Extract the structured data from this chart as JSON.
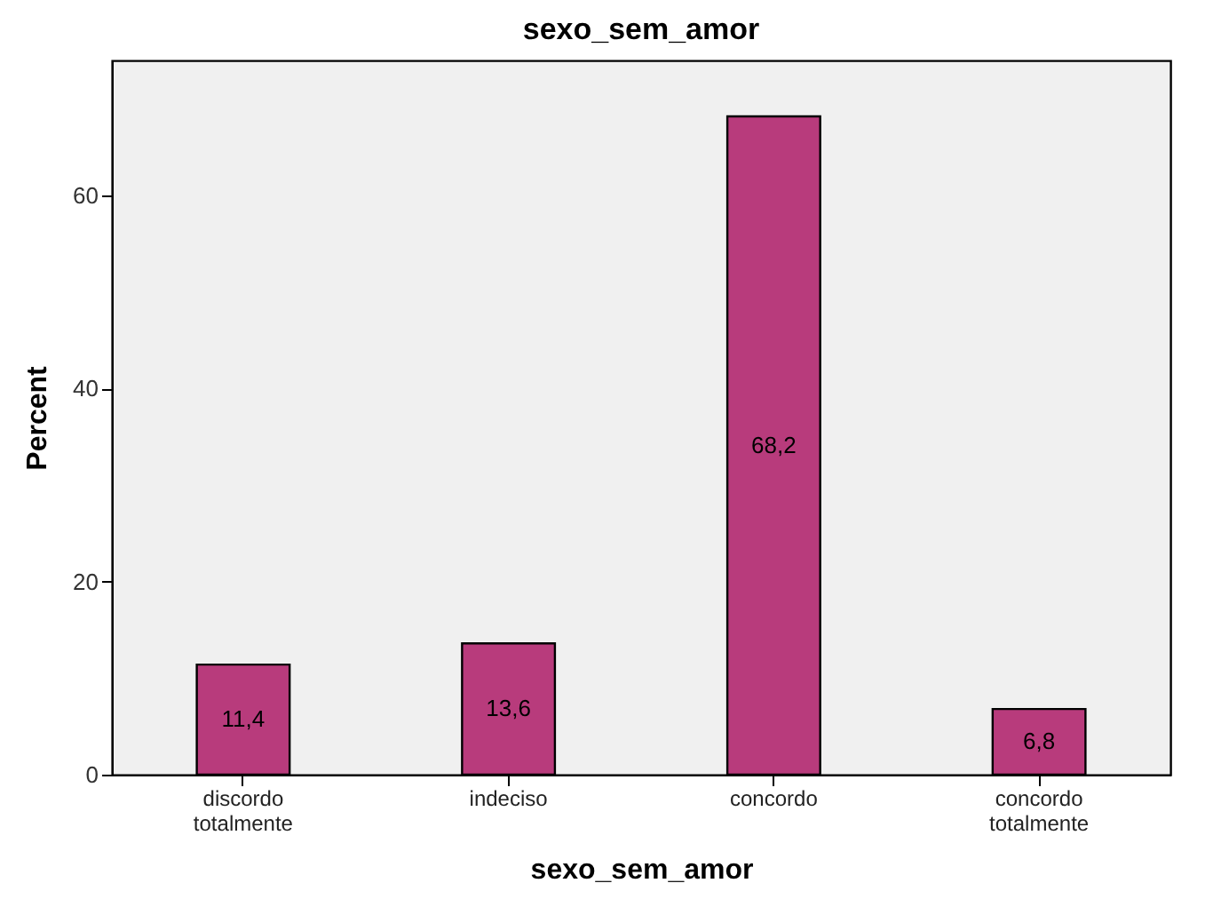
{
  "chart_data": {
    "type": "bar",
    "title": "sexo_sem_amor",
    "xlabel": "sexo_sem_amor",
    "ylabel": "Percent",
    "categories": [
      "discordo totalmente",
      "indeciso",
      "concordo",
      "concordo totalmente"
    ],
    "values": [
      11.4,
      13.6,
      68.2,
      6.8
    ],
    "color": "#b83b7c",
    "value_labels": [
      "11,4",
      "13,6",
      "68,2",
      "6,8"
    ],
    "ylim": [
      0,
      74
    ],
    "yticks": [
      0,
      20,
      40,
      60
    ],
    "grid": false
  }
}
